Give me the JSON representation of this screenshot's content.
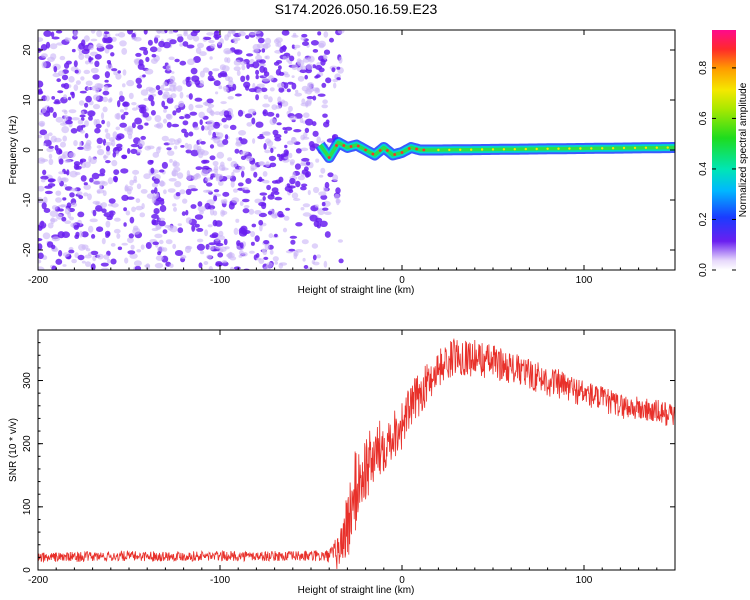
{
  "title": "S174.2026.050.16.59.E23",
  "colors": {
    "series": "#e8302a",
    "dot_dark": "#6a1ff0",
    "dot_light": "#c9b4f7",
    "background": "#ffffff"
  },
  "chart_data": [
    {
      "type": "heatmap",
      "title": "S174.2026.050.16.59.E23",
      "xlabel": "Height of straight line (km)",
      "ylabel": "Frequency (Hz)",
      "xlim": [
        -200,
        150
      ],
      "ylim": [
        -24,
        24
      ],
      "x_ticks": [
        -200,
        -100,
        0,
        100
      ],
      "x_tick_labels": [
        "-200",
        "-100",
        "0",
        "100"
      ],
      "y_ticks": [
        -20,
        -10,
        0,
        10,
        20
      ],
      "y_tick_labels": [
        "-20",
        "-10",
        "0",
        "10",
        "20"
      ],
      "noise_region_x": [
        -200,
        -40
      ],
      "signal_start_x": -45,
      "ridge_frequency_hz": 0,
      "ridge_wobble": [
        {
          "x": -45,
          "y": 1.0
        },
        {
          "x": -40,
          "y": -1.5
        },
        {
          "x": -35,
          "y": 1.5
        },
        {
          "x": -30,
          "y": 0.5
        },
        {
          "x": -25,
          "y": 1.0
        },
        {
          "x": -20,
          "y": 0.0
        },
        {
          "x": -15,
          "y": -1.0
        },
        {
          "x": -10,
          "y": 0.5
        },
        {
          "x": -5,
          "y": -1.0
        },
        {
          "x": 0,
          "y": -0.5
        },
        {
          "x": 5,
          "y": 0.5
        },
        {
          "x": 10,
          "y": 0.0
        },
        {
          "x": 20,
          "y": 0.0
        },
        {
          "x": 150,
          "y": 0.5
        }
      ],
      "colorbar": {
        "label": "Normalized spectral amplitude",
        "range": [
          0,
          0.95
        ],
        "ticks": [
          0.0,
          0.2,
          0.4,
          0.6,
          0.8
        ],
        "tick_labels": [
          "0.0",
          "0.2",
          "0.4",
          "0.6",
          "0.8"
        ]
      }
    },
    {
      "type": "line",
      "xlabel": "Height of straight line (km)",
      "ylabel": "SNR (10 * v/v)",
      "xlim": [
        -200,
        150
      ],
      "ylim": [
        0,
        380
      ],
      "x_ticks": [
        -200,
        -100,
        0,
        100
      ],
      "x_tick_labels": [
        "-200",
        "-100",
        "0",
        "100"
      ],
      "y_ticks": [
        0,
        100,
        200,
        300
      ],
      "y_tick_labels": [
        "0",
        "100",
        "200",
        "300"
      ],
      "series": [
        {
          "name": "SNR",
          "x": [
            -200,
            -150,
            -100,
            -60,
            -40,
            -35,
            -30,
            -25,
            -20,
            -15,
            -10,
            -5,
            0,
            5,
            10,
            20,
            30,
            40,
            50,
            60,
            80,
            100,
            120,
            150
          ],
          "y": [
            20,
            22,
            22,
            22,
            22,
            28,
            70,
            130,
            160,
            180,
            200,
            215,
            230,
            260,
            280,
            320,
            340,
            335,
            330,
            320,
            300,
            280,
            260,
            245
          ],
          "noise_amplitude": [
            8,
            8,
            8,
            8,
            10,
            30,
            60,
            70,
            55,
            50,
            45,
            40,
            40,
            35,
            35,
            30,
            30,
            30,
            28,
            25,
            25,
            22,
            20,
            20
          ]
        }
      ]
    }
  ]
}
